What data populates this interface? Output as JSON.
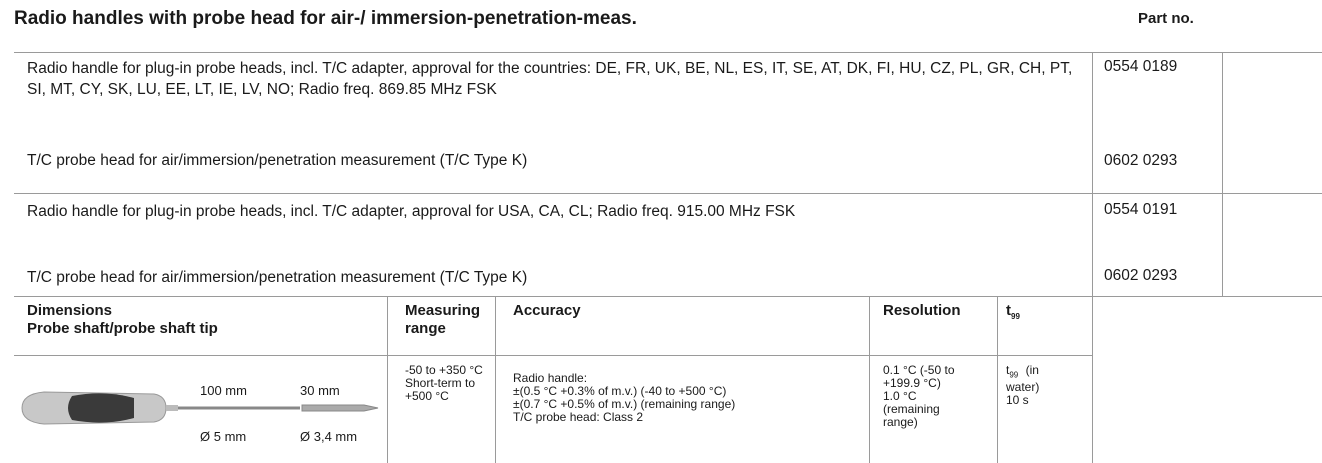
{
  "header": {
    "title": "Radio handles with probe head for air-/ immersion-penetration-meas.",
    "part_no_label": "Part no."
  },
  "items": [
    {
      "description": "Radio handle for plug-in probe heads, incl. T/C adapter, approval for the countries: DE, FR, UK, BE, NL, ES, IT, SE, AT, DK, FI, HU, CZ, PL, GR, CH, PT, SI, MT, CY, SK, LU, EE, LT, IE, LV, NO; Radio freq. 869.85 MHz FSK",
      "part_no": "0554 0189"
    },
    {
      "description": "T/C probe head for air/immersion/penetration measurement (T/C Type K)",
      "part_no": "0602 0293"
    },
    {
      "description": "Radio handle for plug-in probe heads, incl. T/C adapter, approval for USA, CA, CL; Radio freq. 915.00 MHz FSK",
      "part_no": "0554 0191"
    },
    {
      "description": "T/C probe head for air/immersion/penetration measurement (T/C Type K)",
      "part_no": "0602 0293"
    }
  ],
  "spec_table": {
    "headers": {
      "dimensions": [
        "Dimensions",
        "Probe shaft/probe shaft tip"
      ],
      "measuring_range": [
        "Measuring",
        "range"
      ],
      "accuracy": "Accuracy",
      "resolution": "Resolution",
      "t99": {
        "t": "t",
        "sub": "99"
      }
    },
    "row": {
      "dimensions": {
        "shaft_length": "100 mm",
        "tip_length": "30 mm",
        "shaft_diameter": "Ø 5 mm",
        "tip_diameter": "Ø 3,4 mm"
      },
      "measuring_range": [
        "-50 to +350 °C",
        "Short-term to",
        "+500 °C"
      ],
      "accuracy": [
        "Radio handle:",
        "±(0.5 °C +0.3% of m.v.) (-40 to +500 °C)",
        "±(0.7 °C +0.5% of m.v.) (remaining range)",
        "T/C probe head: Class 2"
      ],
      "resolution": [
        "0.1 °C (-50 to",
        "+199.9 °C)",
        "1.0 °C",
        "(remaining",
        "range)"
      ],
      "t99": {
        "t": "t",
        "sub": "99",
        "lines": [
          "(in",
          "water)",
          "10 s"
        ]
      }
    }
  }
}
